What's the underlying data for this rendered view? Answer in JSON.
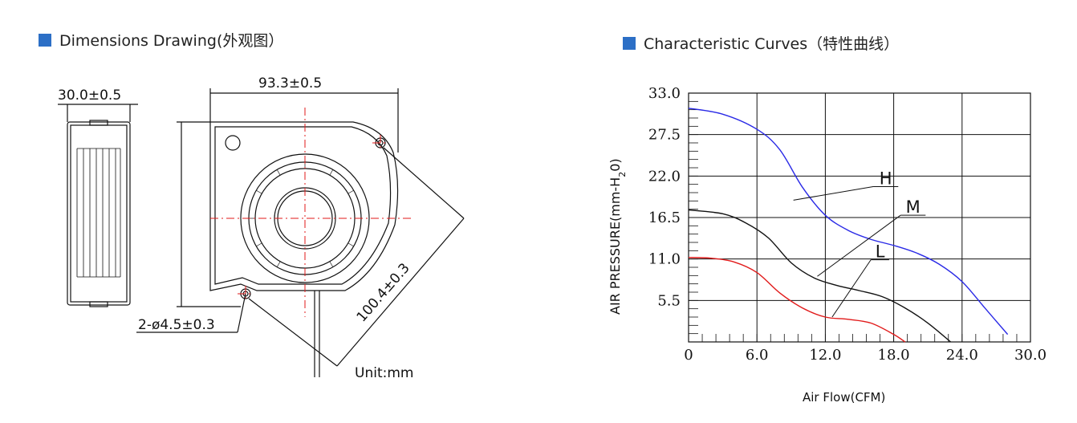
{
  "left": {
    "title": "Dimensions Drawing(外观图）",
    "dims": {
      "thickness": "30.0±0.5",
      "width": "93.3±0.5",
      "holes": "2-ø4.5±0.3",
      "diagonal": "100.4±0.3",
      "unit": "Unit:mm"
    }
  },
  "right": {
    "title": "Characteristic Curves（特性曲线）",
    "ylabel_prefix": "AIR PRESSURE(mm-H",
    "ylabel_sub": "2",
    "ylabel_suffix": "0)",
    "xlabel": "Air Flow(CFM)",
    "curve_labels": [
      "H",
      "M",
      "L"
    ]
  },
  "chart_data": {
    "type": "line",
    "xlabel": "Air Flow(CFM)",
    "ylabel": "AIR PRESSURE(mm-H2O)",
    "xlim": [
      0,
      30
    ],
    "ylim": [
      0,
      33
    ],
    "x_ticks": [
      "0",
      "6.0",
      "12.0",
      "18.0",
      "24.0",
      "30.0"
    ],
    "y_ticks": [
      "5.5",
      "11.0",
      "16.5",
      "22.0",
      "27.5",
      "33.0"
    ],
    "grid": true,
    "series": [
      {
        "name": "H",
        "color": "#2a2ae6",
        "x": [
          0,
          3,
          6,
          8,
          10,
          12,
          14,
          16,
          18,
          20,
          22,
          24,
          26,
          28
        ],
        "y": [
          31.0,
          30.2,
          28.2,
          25.5,
          20.5,
          16.8,
          14.8,
          13.6,
          12.8,
          11.8,
          10.3,
          8.0,
          4.5,
          1.0
        ]
      },
      {
        "name": "M",
        "color": "#111111",
        "x": [
          0,
          3,
          5,
          7,
          9,
          11,
          13,
          15,
          17,
          19,
          21,
          23
        ],
        "y": [
          17.5,
          17.0,
          15.8,
          13.8,
          10.5,
          8.5,
          7.5,
          6.8,
          6.0,
          4.5,
          2.5,
          0.0
        ]
      },
      {
        "name": "L",
        "color": "#e11a1a",
        "x": [
          0,
          2,
          4,
          6,
          8,
          10,
          12,
          14,
          16,
          18,
          19
        ],
        "y": [
          11.2,
          11.1,
          10.6,
          9.2,
          6.5,
          4.5,
          3.3,
          3.0,
          2.5,
          1.0,
          0.0
        ]
      }
    ]
  }
}
